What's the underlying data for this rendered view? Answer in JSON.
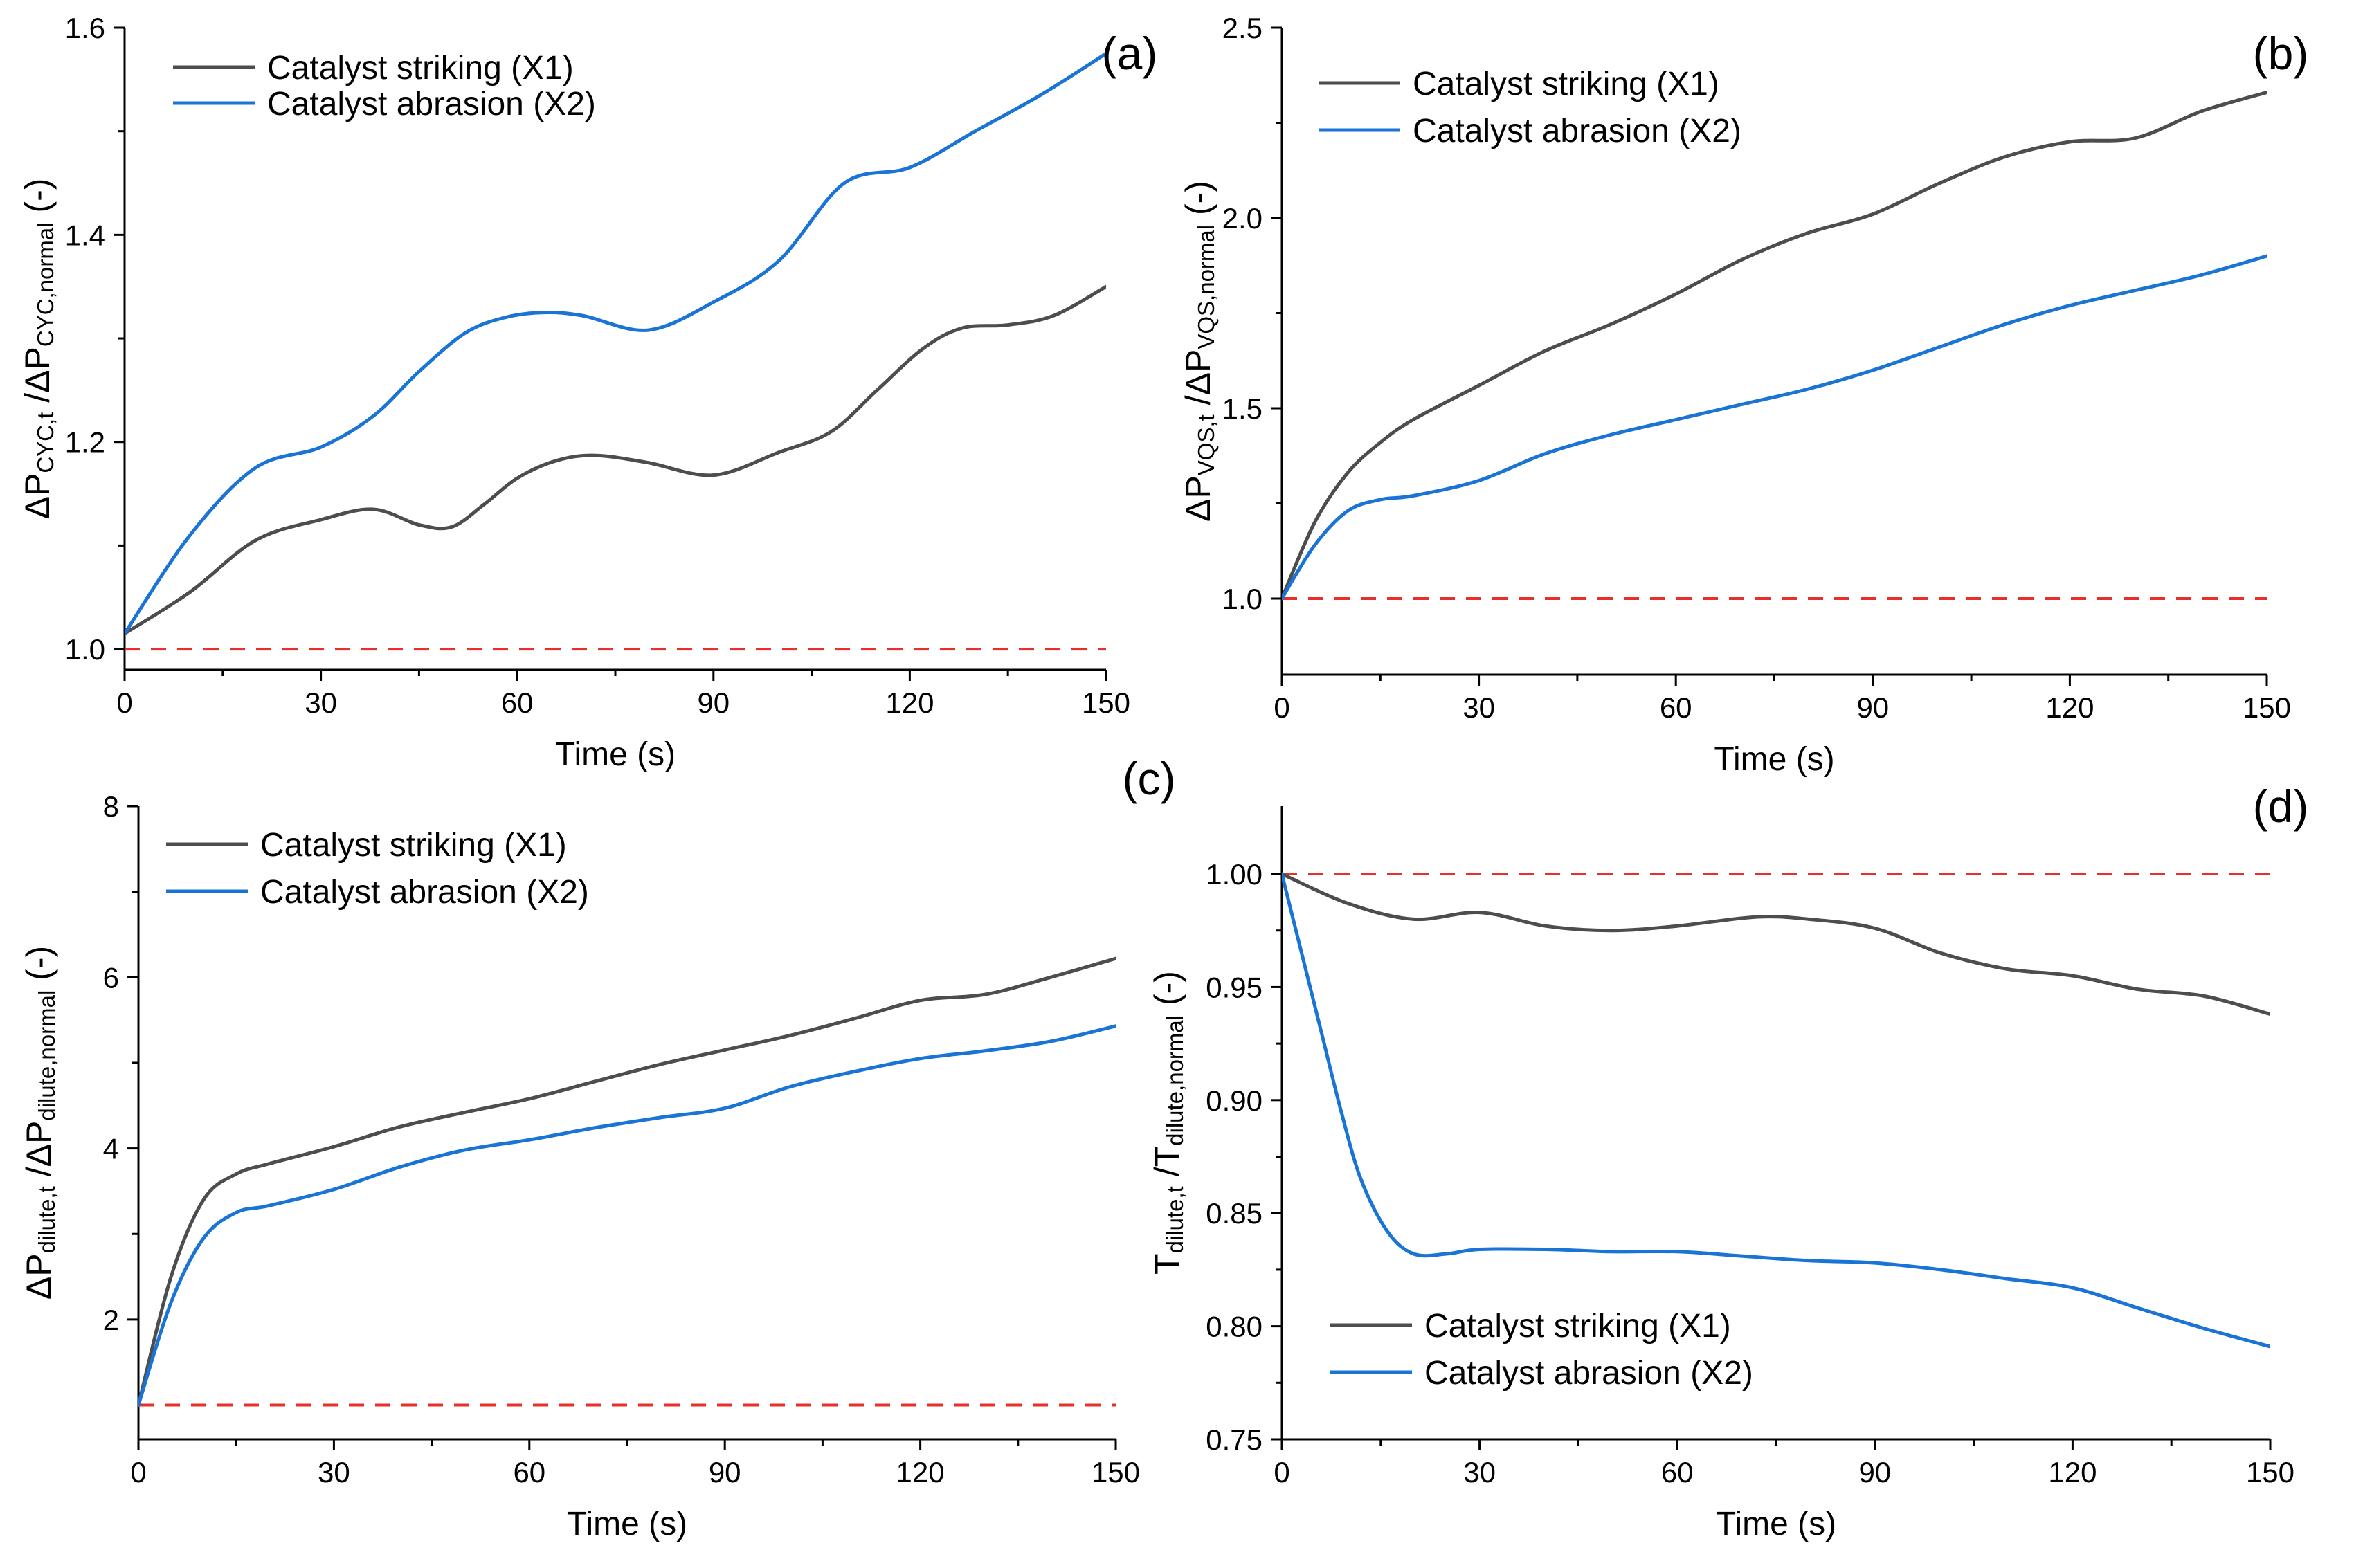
{
  "chart_data": [
    {
      "panel_label": "(a)",
      "type": "line",
      "xlabel": "Time (s)",
      "ylabel": {
        "main": "ΔP",
        "sub1": "CYC,t",
        "mid": " /ΔP",
        "sub2": "CYC,normal",
        "tail": " (-)"
      },
      "xlim": [
        0,
        150
      ],
      "ylim": [
        0.98,
        1.6
      ],
      "xticks": [
        0,
        30,
        60,
        90,
        120,
        150
      ],
      "xtick_labels": [
        "0",
        "30",
        "60",
        "90",
        "120",
        "150"
      ],
      "yticks": [
        1.0,
        1.2,
        1.4,
        1.6
      ],
      "ytick_labels": [
        "1.0",
        "1.2",
        "1.4",
        "1.6"
      ],
      "legend_position": "top-left",
      "reference_line": {
        "y": 1.0,
        "color": "#e8302a",
        "style": "dashed"
      },
      "series": [
        {
          "name": "Catalyst striking (X1)",
          "color": "#4d4d4d",
          "x": [
            0,
            10,
            20,
            30,
            38,
            45,
            50,
            55,
            60,
            66,
            72,
            80,
            90,
            100,
            108,
            115,
            122,
            128,
            135,
            142,
            150
          ],
          "values": [
            1.015,
            1.055,
            1.105,
            1.125,
            1.135,
            1.12,
            1.118,
            1.14,
            1.165,
            1.182,
            1.187,
            1.18,
            1.168,
            1.19,
            1.21,
            1.25,
            1.29,
            1.31,
            1.313,
            1.322,
            1.35
          ]
        },
        {
          "name": "Catalyst abrasion (X2)",
          "color": "#1a74d6",
          "x": [
            0,
            10,
            20,
            30,
            38,
            45,
            52,
            58,
            64,
            70,
            80,
            90,
            100,
            110,
            120,
            130,
            140,
            150
          ],
          "values": [
            1.015,
            1.11,
            1.175,
            1.195,
            1.225,
            1.268,
            1.305,
            1.32,
            1.325,
            1.322,
            1.308,
            1.335,
            1.375,
            1.45,
            1.465,
            1.5,
            1.535,
            1.575
          ]
        }
      ]
    },
    {
      "panel_label": "(b)",
      "type": "line",
      "xlabel": "Time (s)",
      "ylabel": {
        "main": "ΔP",
        "sub1": "VQS,t",
        "mid": " /ΔP",
        "sub2": "VQS,normal",
        "tail": " (-)"
      },
      "xlim": [
        0,
        150
      ],
      "ylim": [
        0.8,
        2.5
      ],
      "xticks": [
        0,
        30,
        60,
        90,
        120,
        150
      ],
      "xtick_labels": [
        "0",
        "30",
        "60",
        "90",
        "120",
        "150"
      ],
      "yticks": [
        1.0,
        1.5,
        2.0,
        2.5
      ],
      "ytick_labels": [
        "1.0",
        "1.5",
        "2.0",
        "2.5"
      ],
      "legend_position": "top-left",
      "reference_line": {
        "y": 1.0,
        "color": "#e8302a",
        "style": "dashed"
      },
      "series": [
        {
          "name": "Catalyst striking (X1)",
          "color": "#4d4d4d",
          "x": [
            0,
            5,
            10,
            15,
            20,
            30,
            40,
            50,
            60,
            70,
            80,
            90,
            100,
            110,
            120,
            130,
            140,
            150
          ],
          "values": [
            1.0,
            1.2,
            1.33,
            1.41,
            1.47,
            1.56,
            1.65,
            1.72,
            1.8,
            1.89,
            1.96,
            2.01,
            2.09,
            2.16,
            2.2,
            2.21,
            2.28,
            2.33
          ]
        },
        {
          "name": "Catalyst abrasion (X2)",
          "color": "#1a74d6",
          "x": [
            0,
            5,
            10,
            15,
            20,
            30,
            40,
            50,
            60,
            70,
            80,
            90,
            100,
            110,
            120,
            130,
            140,
            150
          ],
          "values": [
            1.0,
            1.14,
            1.23,
            1.26,
            1.27,
            1.31,
            1.38,
            1.43,
            1.47,
            1.51,
            1.55,
            1.6,
            1.66,
            1.72,
            1.77,
            1.81,
            1.85,
            1.9
          ]
        }
      ]
    },
    {
      "panel_label": "(c)",
      "type": "line",
      "xlabel": "Time (s)",
      "ylabel": {
        "main": "ΔP",
        "sub1": "dilute,t",
        "mid": " /ΔP",
        "sub2": "dilute,normal",
        "tail": " (-)"
      },
      "xlim": [
        0,
        150
      ],
      "ylim": [
        0.6,
        8
      ],
      "xticks": [
        0,
        30,
        60,
        90,
        120,
        150
      ],
      "xtick_labels": [
        "0",
        "30",
        "60",
        "90",
        "120",
        "150"
      ],
      "yticks": [
        2,
        4,
        6,
        8
      ],
      "ytick_labels": [
        "2",
        "4",
        "6",
        "8"
      ],
      "legend_position": "top-left",
      "reference_line": {
        "y": 1.0,
        "color": "#e8302a",
        "style": "dashed"
      },
      "series": [
        {
          "name": "Catalyst striking (X1)",
          "color": "#4d4d4d",
          "x": [
            0,
            5,
            10,
            15,
            20,
            30,
            40,
            50,
            60,
            70,
            80,
            90,
            100,
            110,
            120,
            130,
            140,
            150
          ],
          "values": [
            1.0,
            2.5,
            3.4,
            3.7,
            3.82,
            4.02,
            4.25,
            4.42,
            4.58,
            4.78,
            4.98,
            5.15,
            5.32,
            5.52,
            5.73,
            5.8,
            6.0,
            6.22
          ]
        },
        {
          "name": "Catalyst abrasion (X2)",
          "color": "#1a74d6",
          "x": [
            0,
            5,
            10,
            15,
            20,
            30,
            40,
            50,
            60,
            70,
            80,
            90,
            100,
            110,
            120,
            130,
            140,
            150
          ],
          "values": [
            1.0,
            2.2,
            2.95,
            3.25,
            3.33,
            3.52,
            3.78,
            3.98,
            4.1,
            4.24,
            4.36,
            4.47,
            4.72,
            4.9,
            5.05,
            5.14,
            5.25,
            5.43
          ]
        }
      ]
    },
    {
      "panel_label": "(d)",
      "type": "line",
      "xlabel": "Time (s)",
      "ylabel": {
        "main": "T",
        "sub1": "dilute,t",
        "mid": " /T",
        "sub2": "dilute,normal",
        "tail": " (-)"
      },
      "xlim": [
        0,
        150
      ],
      "ylim": [
        0.75,
        1.03
      ],
      "xticks": [
        0,
        30,
        60,
        90,
        120,
        150
      ],
      "xtick_labels": [
        "0",
        "30",
        "60",
        "90",
        "120",
        "150"
      ],
      "yticks": [
        0.75,
        0.8,
        0.85,
        0.9,
        0.95,
        1.0
      ],
      "ytick_labels": [
        "0.75",
        "0.80",
        "0.85",
        "0.90",
        "0.95",
        "1.00"
      ],
      "legend_position": "bottom-left",
      "reference_line": {
        "y": 1.0,
        "color": "#e8302a",
        "style": "dashed"
      },
      "series": [
        {
          "name": "Catalyst striking (X1)",
          "color": "#4d4d4d",
          "x": [
            0,
            10,
            20,
            30,
            40,
            50,
            60,
            72,
            80,
            90,
            100,
            110,
            120,
            130,
            140,
            150
          ],
          "values": [
            1.0,
            0.987,
            0.98,
            0.983,
            0.977,
            0.975,
            0.977,
            0.981,
            0.98,
            0.976,
            0.965,
            0.958,
            0.955,
            0.949,
            0.946,
            0.938
          ]
        },
        {
          "name": "Catalyst abrasion (X2)",
          "color": "#1a74d6",
          "x": [
            0,
            3,
            6,
            9,
            12,
            16,
            20,
            25,
            30,
            40,
            50,
            60,
            70,
            80,
            90,
            100,
            110,
            120,
            130,
            140,
            150
          ],
          "values": [
            1.0,
            0.965,
            0.93,
            0.895,
            0.865,
            0.842,
            0.832,
            0.832,
            0.834,
            0.834,
            0.833,
            0.833,
            0.831,
            0.829,
            0.828,
            0.825,
            0.821,
            0.817,
            0.808,
            0.799,
            0.791
          ]
        }
      ]
    }
  ]
}
